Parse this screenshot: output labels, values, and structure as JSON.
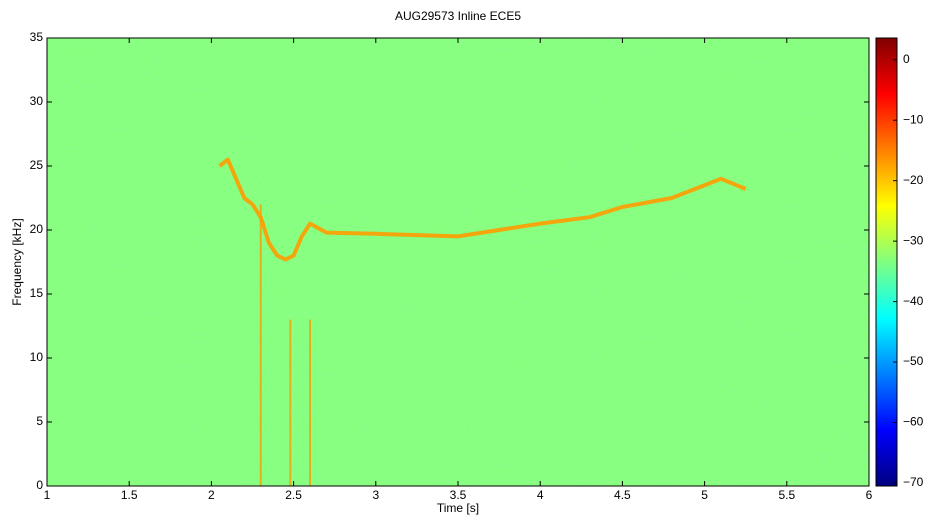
{
  "chart_data": {
    "type": "spectrogram",
    "title": "AUG29573 Inline ECE5",
    "x_label": "Time [s]",
    "y_label": "Frequency [kHz]",
    "xlim": [
      1,
      6
    ],
    "ylim": [
      0,
      35
    ],
    "xticks": [
      1,
      1.5,
      2,
      2.5,
      3,
      3.5,
      4,
      4.5,
      5,
      5.5,
      6
    ],
    "yticks": [
      0,
      5,
      10,
      15,
      20,
      25,
      30,
      35
    ],
    "colormap": "jet",
    "clim": [
      -70.5,
      3.6
    ],
    "cticks": [
      {
        "value": -70,
        "label": "−70"
      },
      {
        "value": -60,
        "label": "−60"
      },
      {
        "value": -50,
        "label": "−50"
      },
      {
        "value": -40,
        "label": "−40"
      },
      {
        "value": -30,
        "label": "−30"
      },
      {
        "value": -20,
        "label": "−20"
      },
      {
        "value": -10,
        "label": "−10"
      },
      0
    ],
    "background_level": -33,
    "ridge_level": -17,
    "x": [
      2.05,
      2.1,
      2.15,
      2.2,
      2.25,
      2.3,
      2.35,
      2.4,
      2.45,
      2.5,
      2.55,
      2.6,
      2.7,
      3.0,
      3.5,
      4.0,
      4.3,
      4.5,
      4.8,
      5.0,
      5.1,
      5.25
    ],
    "values": [
      25,
      25.5,
      24,
      22.5,
      22,
      21,
      19,
      18,
      17.7,
      18,
      19.5,
      20.5,
      19.8,
      19.7,
      19.5,
      20.5,
      21,
      21.8,
      22.5,
      23.5,
      24,
      23.2
    ],
    "streaks": [
      {
        "x": 2.3,
        "top": 22
      },
      {
        "x": 2.48,
        "top": 13
      },
      {
        "x": 2.6,
        "top": 13
      }
    ]
  }
}
